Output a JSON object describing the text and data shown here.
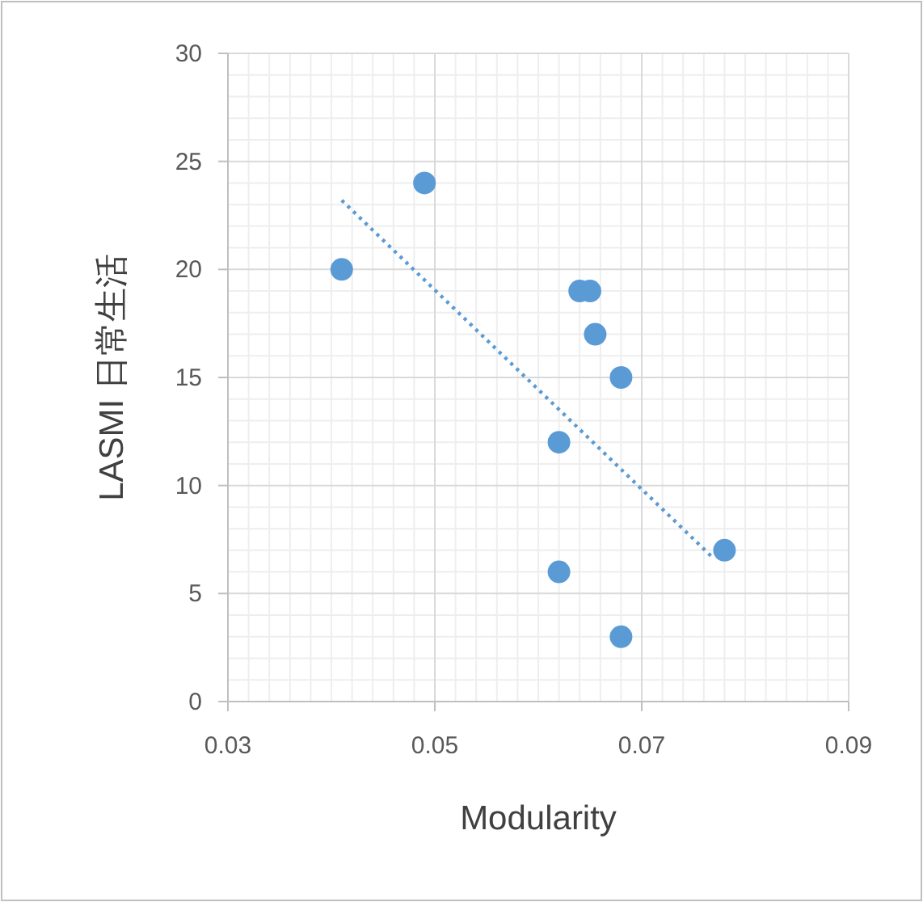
{
  "chart_data": {
    "type": "scatter",
    "xlabel": "Modularity",
    "ylabel": "LASMI 日常生活",
    "xlim": [
      0.03,
      0.09
    ],
    "xticks": [
      {
        "value": 0.03,
        "label": "0.03"
      },
      {
        "value": 0.05,
        "label": "0.05"
      },
      {
        "value": 0.07,
        "label": "0.07"
      },
      {
        "value": 0.09,
        "label": "0.09"
      }
    ],
    "ylim": [
      0,
      30
    ],
    "yticks": [
      0,
      5,
      10,
      15,
      20,
      25,
      30
    ],
    "grid": true,
    "series": [
      {
        "marker": "circle",
        "color": "#5b9bd5",
        "x": [
          0.041,
          0.049,
          0.064,
          0.065,
          0.0655,
          0.068,
          0.062,
          0.078,
          0.062,
          0.068
        ],
        "values": [
          20,
          24,
          19,
          19,
          17,
          15,
          12,
          7,
          6,
          3
        ]
      },
      {
        "type": "line",
        "color": "#5b9bd5",
        "line_style": "dotted",
        "x": [
          0.041,
          0.077
        ],
        "values": [
          23.2,
          6.6
        ]
      }
    ]
  }
}
